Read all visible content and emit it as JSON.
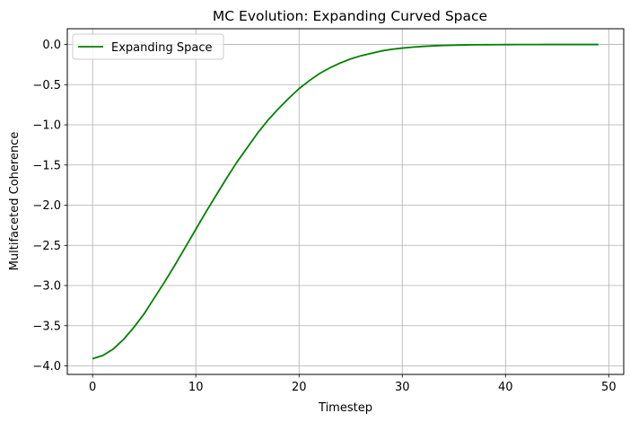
{
  "chart_data": {
    "type": "line",
    "title": "MC Evolution: Expanding Curved Space",
    "xlabel": "Timestep",
    "ylabel": "Multifaceted Coherence",
    "xlim": [
      -2.45,
      51.45
    ],
    "ylim": [
      -4.106,
      0.196
    ],
    "xticks": [
      0,
      10,
      20,
      30,
      40,
      50
    ],
    "yticks": [
      0.0,
      -0.5,
      -1.0,
      -1.5,
      -2.0,
      -2.5,
      -3.0,
      -3.5,
      -4.0
    ],
    "xtick_labels": [
      "0",
      "10",
      "20",
      "30",
      "40",
      "50"
    ],
    "ytick_labels": [
      "0.0",
      "−0.5",
      "−1.0",
      "−1.5",
      "−2.0",
      "−2.5",
      "−3.0",
      "−3.5",
      "−4.0"
    ],
    "grid": true,
    "legend": "upper-left",
    "series": [
      {
        "name": "Expanding Space",
        "color": "#008000",
        "x": [
          0,
          1,
          2,
          3,
          4,
          5,
          6,
          7,
          8,
          9,
          10,
          11,
          12,
          13,
          14,
          15,
          16,
          17,
          18,
          19,
          20,
          21,
          22,
          23,
          24,
          25,
          26,
          27,
          28,
          29,
          30,
          31,
          32,
          33,
          34,
          35,
          36,
          37,
          38,
          39,
          40,
          41,
          42,
          43,
          44,
          45,
          46,
          47,
          48,
          49
        ],
        "y": [
          -3.91,
          -3.87,
          -3.79,
          -3.67,
          -3.52,
          -3.35,
          -3.15,
          -2.95,
          -2.74,
          -2.52,
          -2.3,
          -2.08,
          -1.87,
          -1.66,
          -1.46,
          -1.28,
          -1.1,
          -0.94,
          -0.8,
          -0.67,
          -0.55,
          -0.45,
          -0.36,
          -0.29,
          -0.23,
          -0.18,
          -0.14,
          -0.11,
          -0.08,
          -0.06,
          -0.045,
          -0.033,
          -0.024,
          -0.017,
          -0.012,
          -0.009,
          -0.006,
          -0.004,
          -0.003,
          -0.002,
          -0.0015,
          -0.001,
          -0.0007,
          -0.0005,
          -0.0003,
          -0.0002,
          -0.0001,
          -0.0001,
          0.0,
          0.0
        ]
      }
    ]
  }
}
